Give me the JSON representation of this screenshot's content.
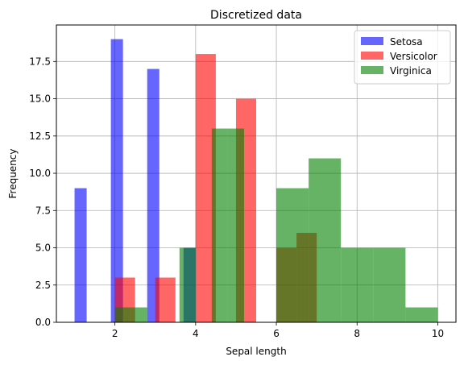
{
  "chart_data": {
    "type": "bar",
    "title": "Discretized data",
    "xlabel": "Sepal length",
    "ylabel": "Frequency",
    "xlim": [
      0.55,
      10.45
    ],
    "ylim": [
      0,
      19.95
    ],
    "grid": true,
    "legend_position": "top-right",
    "xticks": [
      "2",
      "4",
      "6",
      "8",
      "10"
    ],
    "yticks": [
      "0.0",
      "2.5",
      "5.0",
      "7.5",
      "10.0",
      "12.5",
      "15.0",
      "17.5"
    ],
    "xtick_values": [
      2,
      4,
      6,
      8,
      10
    ],
    "ytick_values": [
      0,
      2.5,
      5,
      7.5,
      10,
      12.5,
      15,
      17.5
    ],
    "series": [
      {
        "name": "Setosa",
        "color": "#0000ff",
        "opacity": 0.6,
        "bins": [
          {
            "x0": 1.0,
            "x1": 1.3,
            "count": 9
          },
          {
            "x0": 1.9,
            "x1": 2.2,
            "count": 19
          },
          {
            "x0": 2.8,
            "x1": 3.1,
            "count": 17
          },
          {
            "x0": 3.7,
            "x1": 4.0,
            "count": 5
          }
        ]
      },
      {
        "name": "Versicolor",
        "color": "#ff0000",
        "opacity": 0.6,
        "bins": [
          {
            "x0": 2.0,
            "x1": 2.5,
            "count": 3
          },
          {
            "x0": 3.0,
            "x1": 3.5,
            "count": 3
          },
          {
            "x0": 4.0,
            "x1": 4.5,
            "count": 18
          },
          {
            "x0": 5.0,
            "x1": 5.5,
            "count": 15
          },
          {
            "x0": 6.0,
            "x1": 6.5,
            "count": 5
          },
          {
            "x0": 6.5,
            "x1": 7.0,
            "count": 6
          }
        ]
      },
      {
        "name": "Virginica",
        "color": "#008000",
        "opacity": 0.6,
        "bins": [
          {
            "x0": 2.0,
            "x1": 2.4,
            "count": 1
          },
          {
            "x0": 2.4,
            "x1": 2.8,
            "count": 1
          },
          {
            "x0": 3.6,
            "x1": 4.0,
            "count": 5
          },
          {
            "x0": 4.4,
            "x1": 4.8,
            "count": 13
          },
          {
            "x0": 4.8,
            "x1": 5.2,
            "count": 13
          },
          {
            "x0": 6.0,
            "x1": 6.8,
            "count": 9
          },
          {
            "x0": 6.8,
            "x1": 7.6,
            "count": 11
          },
          {
            "x0": 7.6,
            "x1": 8.4,
            "count": 5
          },
          {
            "x0": 8.4,
            "x1": 9.2,
            "count": 5
          },
          {
            "x0": 9.2,
            "x1": 10.0,
            "count": 1
          }
        ]
      }
    ]
  }
}
